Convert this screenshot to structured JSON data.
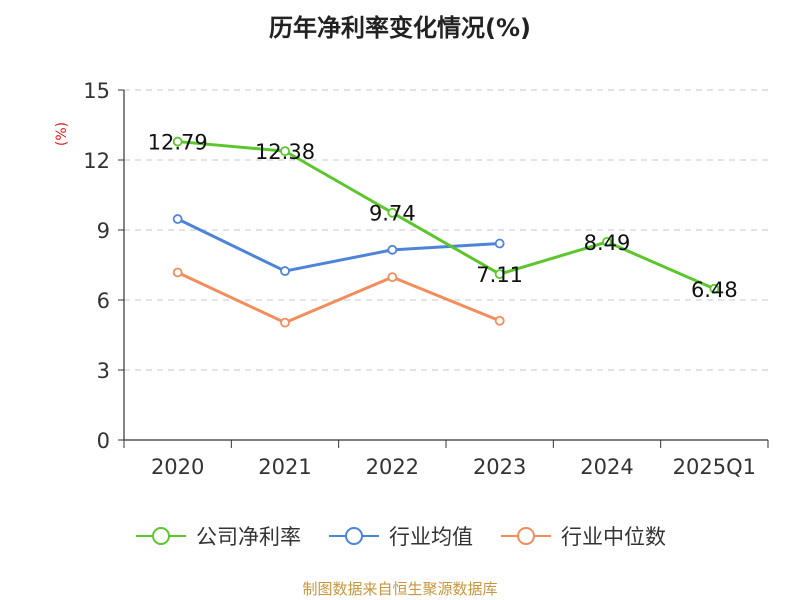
{
  "chart_data": {
    "type": "line",
    "title": "历年净利率变化情况(%)",
    "ylabel": "(%)",
    "xlabel": "",
    "categories": [
      "2020",
      "2021",
      "2022",
      "2023",
      "2024",
      "2025Q1"
    ],
    "ylim": [
      0,
      15
    ],
    "yticks": [
      0,
      3,
      6,
      9,
      12,
      15
    ],
    "grid": "horizontal-dashed",
    "legend_position": "bottom",
    "series": [
      {
        "name": "公司净利率",
        "color": "#5cc72d",
        "values": [
          12.79,
          12.38,
          9.74,
          7.11,
          8.49,
          6.48
        ],
        "labels": [
          "12.79",
          "12.38",
          "9.74",
          "7.11",
          "8.49",
          "6.48"
        ]
      },
      {
        "name": "行业均值",
        "color": "#4e84d8",
        "values": [
          9.47,
          7.24,
          8.15,
          8.42,
          null,
          null
        ]
      },
      {
        "name": "行业中位数",
        "color": "#f38d5c",
        "values": [
          7.18,
          5.03,
          6.98,
          5.11,
          null,
          null
        ]
      }
    ],
    "source": "制图数据来自恒生聚源数据库"
  }
}
